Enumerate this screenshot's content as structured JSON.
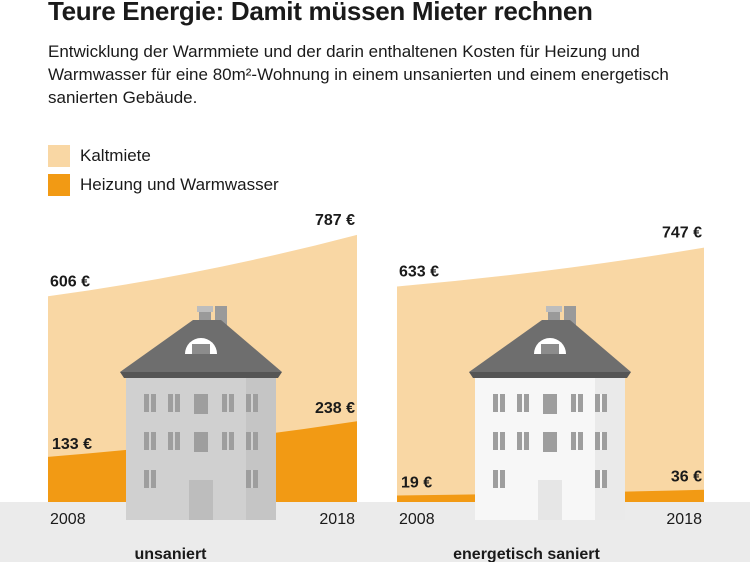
{
  "title": "Teure Energie: Damit müssen Mieter rechnen",
  "subtitle": "Entwicklung der Warmmiete und der darin enthaltenen Kosten für Heizung und Warmwasser für eine 80m²-Wohnung in einem unsanierten und einem energetisch sanierten Gebäude.",
  "colors": {
    "kaltmiete": "#f9d7a4",
    "heizung": "#f29a14",
    "ground": "#ebebeb",
    "roof": "#6e6e6e"
  },
  "legend": [
    {
      "label": "Kaltmiete",
      "color": "#f9d7a4"
    },
    {
      "label": "Heizung und Warmwasser",
      "color": "#f29a14"
    }
  ],
  "chart_data": [
    {
      "type": "area",
      "panel_label": "unsaniert",
      "x": [
        2008,
        2018
      ],
      "x_labels": [
        "2008",
        "2018"
      ],
      "series": [
        {
          "name": "Kaltmiete",
          "values": [
            606,
            787
          ],
          "labels": [
            "606 €",
            "787 €"
          ]
        },
        {
          "name": "Heizung und Warmwasser",
          "values": [
            133,
            238
          ],
          "labels": [
            "133 €",
            "238 €"
          ]
        }
      ],
      "ylim": [
        0,
        800
      ],
      "legend_position": "top-left",
      "grid": false
    },
    {
      "type": "area",
      "panel_label": "energetisch saniert",
      "x": [
        2008,
        2018
      ],
      "x_labels": [
        "2008",
        "2018"
      ],
      "series": [
        {
          "name": "Kaltmiete",
          "values": [
            633,
            747
          ],
          "labels": [
            "633 €",
            "747 €"
          ]
        },
        {
          "name": "Heizung und Warmwasser",
          "values": [
            19,
            36
          ],
          "labels": [
            "19 €",
            "36 €"
          ]
        }
      ],
      "ylim": [
        0,
        800
      ],
      "legend_position": "top-left",
      "grid": false
    }
  ]
}
